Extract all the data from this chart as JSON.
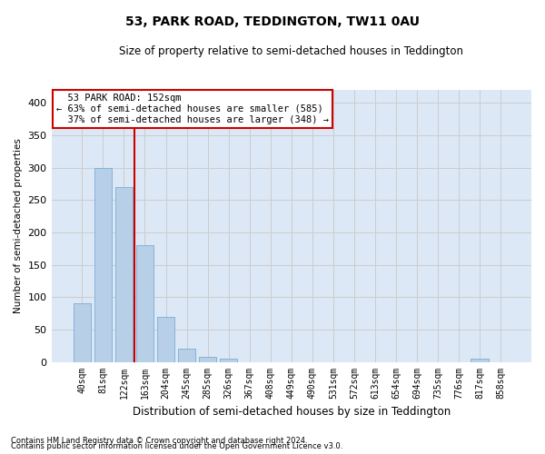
{
  "title1": "53, PARK ROAD, TEDDINGTON, TW11 0AU",
  "title2": "Size of property relative to semi-detached houses in Teddington",
  "xlabel": "Distribution of semi-detached houses by size in Teddington",
  "ylabel": "Number of semi-detached properties",
  "bin_labels": [
    "40sqm",
    "81sqm",
    "122sqm",
    "163sqm",
    "204sqm",
    "245sqm",
    "285sqm",
    "326sqm",
    "367sqm",
    "408sqm",
    "449sqm",
    "490sqm",
    "531sqm",
    "572sqm",
    "613sqm",
    "654sqm",
    "694sqm",
    "735sqm",
    "776sqm",
    "817sqm",
    "858sqm"
  ],
  "bar_heights": [
    90,
    300,
    270,
    180,
    70,
    20,
    8,
    5,
    0,
    0,
    0,
    0,
    0,
    0,
    0,
    0,
    0,
    0,
    0,
    5,
    0
  ],
  "bar_color": "#b8cfe8",
  "bar_edge_color": "#7aadd4",
  "property_label": "53 PARK ROAD: 152sqm",
  "pct_smaller": 63,
  "pct_larger": 37,
  "count_smaller": 585,
  "count_larger": 348,
  "vline_color": "#cc0000",
  "annotation_box_color": "#cc0000",
  "ylim": [
    0,
    420
  ],
  "yticks": [
    0,
    50,
    100,
    150,
    200,
    250,
    300,
    350,
    400
  ],
  "grid_color": "#cccccc",
  "bg_color": "#dce8f5",
  "footnote1": "Contains HM Land Registry data © Crown copyright and database right 2024.",
  "footnote2": "Contains public sector information licensed under the Open Government Licence v3.0."
}
